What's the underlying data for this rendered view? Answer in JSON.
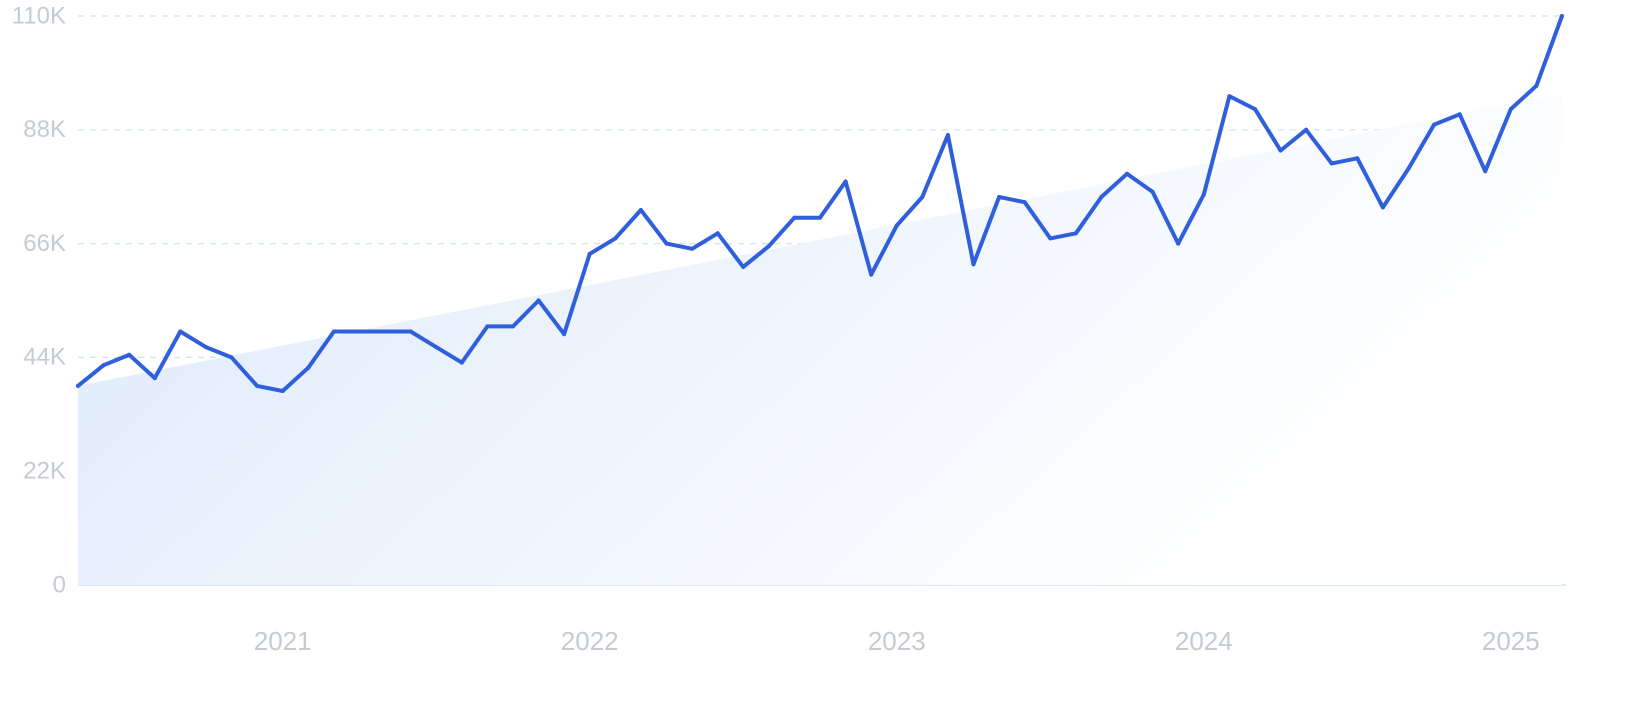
{
  "chart_data": {
    "type": "line",
    "title": "",
    "xlabel": "",
    "ylabel": "",
    "ylim": [
      0,
      110000
    ],
    "xlim": [
      "2020-05",
      "2025-03"
    ],
    "grid": true,
    "legend": "none",
    "y_ticks": [
      {
        "value": 0,
        "label": "0"
      },
      {
        "value": 22000,
        "label": "22K"
      },
      {
        "value": 44000,
        "label": "44K"
      },
      {
        "value": 66000,
        "label": "66K"
      },
      {
        "value": 88000,
        "label": "88K"
      },
      {
        "value": 110000,
        "label": "110K"
      }
    ],
    "x_ticks": [
      {
        "value": "2021-01",
        "label": "2021"
      },
      {
        "value": "2022-01",
        "label": "2022"
      },
      {
        "value": "2023-01",
        "label": "2023"
      },
      {
        "value": "2024-01",
        "label": "2024"
      },
      {
        "value": "2025-01",
        "label": "2025"
      }
    ],
    "colors": {
      "line": "#2f5fdc",
      "area_start": "#dce9fa",
      "area_end": "#ffffff",
      "grid": "#cfe3ef",
      "tick_text": "#c6cad2"
    },
    "series": [
      {
        "x": [
          "2020-05",
          "2020-06",
          "2020-07",
          "2020-08",
          "2020-09",
          "2020-10",
          "2020-11",
          "2020-12",
          "2021-01",
          "2021-02",
          "2021-03",
          "2021-04",
          "2021-05",
          "2021-06",
          "2021-07",
          "2021-08",
          "2021-09",
          "2021-10",
          "2021-11",
          "2021-12",
          "2022-01",
          "2022-02",
          "2022-03",
          "2022-04",
          "2022-05",
          "2022-06",
          "2022-07",
          "2022-08",
          "2022-09",
          "2022-10",
          "2022-11",
          "2022-12",
          "2023-01",
          "2023-02",
          "2023-03",
          "2023-04",
          "2023-05",
          "2023-06",
          "2023-07",
          "2023-08",
          "2023-09",
          "2023-10",
          "2023-11",
          "2023-12",
          "2024-01",
          "2024-02",
          "2024-03",
          "2024-04",
          "2024-05",
          "2024-06",
          "2024-07",
          "2024-08",
          "2024-09",
          "2024-10",
          "2024-11",
          "2024-12",
          "2025-01",
          "2025-02",
          "2025-03"
        ],
        "values": [
          38500,
          42500,
          44500,
          40000,
          49000,
          46000,
          44000,
          38500,
          37500,
          42000,
          49000,
          49000,
          49000,
          49000,
          46000,
          43000,
          50000,
          50000,
          55000,
          48500,
          64000,
          67000,
          72500,
          66000,
          65000,
          68000,
          61500,
          65500,
          71000,
          71000,
          78000,
          60000,
          69500,
          75000,
          87000,
          62000,
          75000,
          74000,
          67000,
          68000,
          75000,
          79500,
          76000,
          66000,
          75500,
          94500,
          92000,
          84000,
          88000,
          81500,
          82500,
          73000,
          80500,
          89000,
          91000,
          80000,
          92000,
          96500,
          110000
        ],
        "trend": [
          38500,
          95000
        ]
      }
    ]
  }
}
